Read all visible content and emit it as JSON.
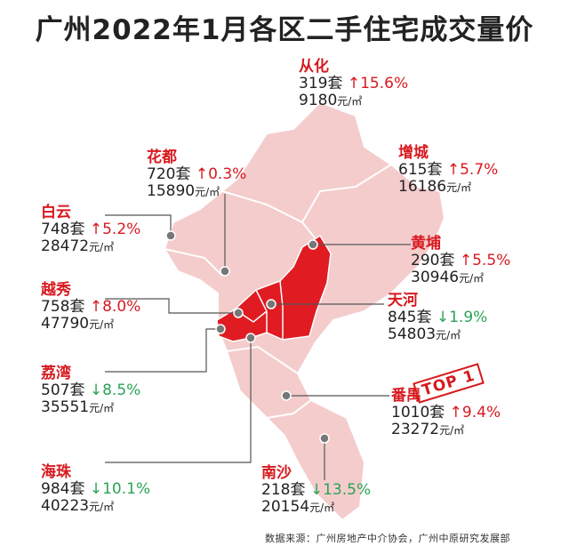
{
  "title": "广州2022年1月各区二手住宅成交量价",
  "source": "数据来源：广州房地产中介协会，广州中原研究发展部",
  "stamp": "TOP 1",
  "unit_volume": "套",
  "unit_price": "元/㎡",
  "colors": {
    "up": "#d7191f",
    "down": "#2aa356",
    "highlight": "#e01b22",
    "region": "#f4cccc"
  },
  "districts": {
    "conghua": {
      "name": "从化",
      "volume": "319",
      "change": "↑15.6%",
      "price": "9180"
    },
    "huadu": {
      "name": "花都",
      "volume": "720",
      "change": "↑0.3%",
      "price": "15890"
    },
    "zengcheng": {
      "name": "增城",
      "volume": "615",
      "change": "↑5.7%",
      "price": "16186"
    },
    "baiyun": {
      "name": "白云",
      "volume": "748",
      "change": "↑5.2%",
      "price": "28472"
    },
    "huangpu": {
      "name": "黄埔",
      "volume": "290",
      "change": "↑5.5%",
      "price": "30946"
    },
    "yuexiu": {
      "name": "越秀",
      "volume": "758",
      "change": "↑8.0%",
      "price": "47790"
    },
    "tianhe": {
      "name": "天河",
      "volume": "845",
      "change": "↓1.9%",
      "price": "54803"
    },
    "liwan": {
      "name": "荔湾",
      "volume": "507",
      "change": "↓8.5%",
      "price": "35551"
    },
    "panyu": {
      "name": "番禺",
      "volume": "1010",
      "change": "↑9.4%",
      "price": "23272"
    },
    "haizhu": {
      "name": "海珠",
      "volume": "984",
      "change": "↓10.1%",
      "price": "40223"
    },
    "nansha": {
      "name": "南沙",
      "volume": "218",
      "change": "↓13.5%",
      "price": "20154"
    }
  }
}
